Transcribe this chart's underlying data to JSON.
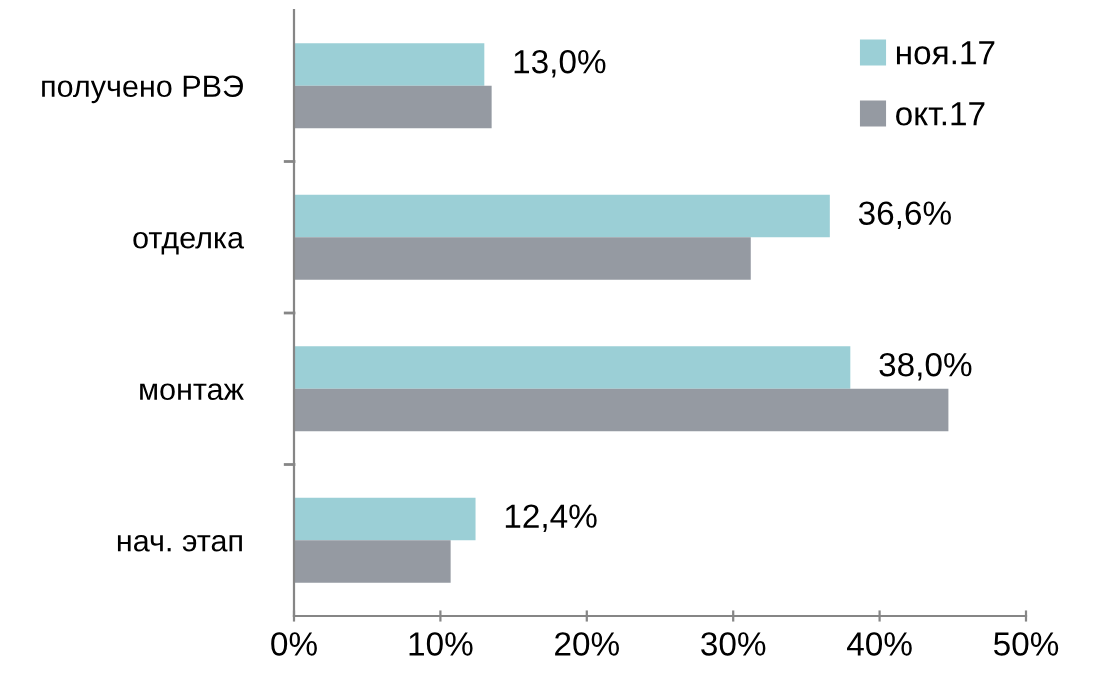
{
  "chart_data": {
    "type": "bar",
    "orientation": "horizontal",
    "categories": [
      "получено РВЭ",
      "отделка",
      "монтаж",
      "нач. этап"
    ],
    "series": [
      {
        "name": "ноя.17",
        "color": "#9bcfd6",
        "values": [
          13.0,
          36.6,
          38.0,
          12.4
        ],
        "value_labels": [
          "13,0%",
          "36,6%",
          "38,0%",
          "12,4%"
        ]
      },
      {
        "name": "окт.17",
        "color": "#959aa2",
        "values": [
          13.5,
          31.2,
          44.7,
          10.7
        ]
      }
    ],
    "xlim": [
      0,
      50
    ],
    "xticks": [
      {
        "value": 0,
        "label": "0%"
      },
      {
        "value": 10,
        "label": "10%"
      },
      {
        "value": 20,
        "label": "20%"
      },
      {
        "value": 30,
        "label": "30%"
      },
      {
        "value": 40,
        "label": "40%"
      },
      {
        "value": 50,
        "label": "50%"
      }
    ],
    "grid": false,
    "legend": "top right"
  }
}
